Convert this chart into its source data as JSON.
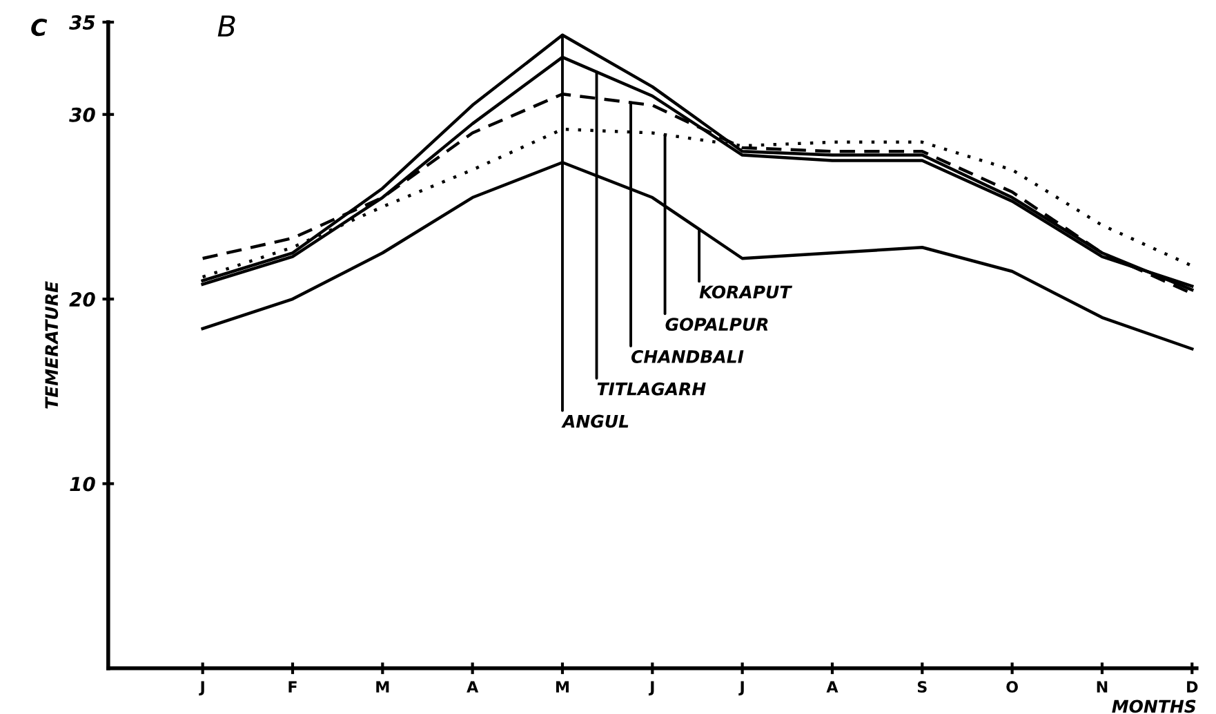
{
  "chart_data": {
    "type": "line",
    "title": "B",
    "xlabel": "MONTHS",
    "ylabel": "TEMERATURE",
    "annotations": [
      "C"
    ],
    "categories": [
      "J",
      "F",
      "M",
      "A",
      "M",
      "J",
      "J",
      "A",
      "S",
      "O",
      "N",
      "D"
    ],
    "ylim": [
      0,
      35
    ],
    "yticks": [
      10,
      20,
      30,
      35
    ],
    "grid": false,
    "legend": false,
    "marker": "none",
    "series": [
      {
        "name": "ANGUL",
        "color": "#000000",
        "line_style": "solid",
        "values": [
          21.0,
          22.5,
          26.0,
          30.5,
          34.3,
          31.5,
          28.0,
          27.8,
          27.8,
          25.5,
          22.5,
          20.5
        ]
      },
      {
        "name": "TITLAGARH",
        "color": "#000000",
        "line_style": "solid",
        "values": [
          20.8,
          22.3,
          25.5,
          29.5,
          33.1,
          31.0,
          27.8,
          27.5,
          27.5,
          25.3,
          22.3,
          20.7
        ]
      },
      {
        "name": "CHANDBALI",
        "color": "#000000",
        "line_style": "dashed",
        "values": [
          22.2,
          23.3,
          25.5,
          29.0,
          31.1,
          30.5,
          28.2,
          28.0,
          28.0,
          25.8,
          22.5,
          20.3
        ]
      },
      {
        "name": "GOPALPUR",
        "color": "#000000",
        "line_style": "dotted",
        "values": [
          21.2,
          22.8,
          25.0,
          27.0,
          29.2,
          29.0,
          28.3,
          28.5,
          28.5,
          27.0,
          24.0,
          21.8
        ]
      },
      {
        "name": "KORAPUT",
        "color": "#000000",
        "line_style": "solid",
        "values": [
          18.4,
          20.0,
          22.5,
          25.5,
          27.4,
          25.5,
          22.2,
          22.5,
          22.8,
          21.5,
          19.0,
          17.3
        ]
      }
    ]
  }
}
